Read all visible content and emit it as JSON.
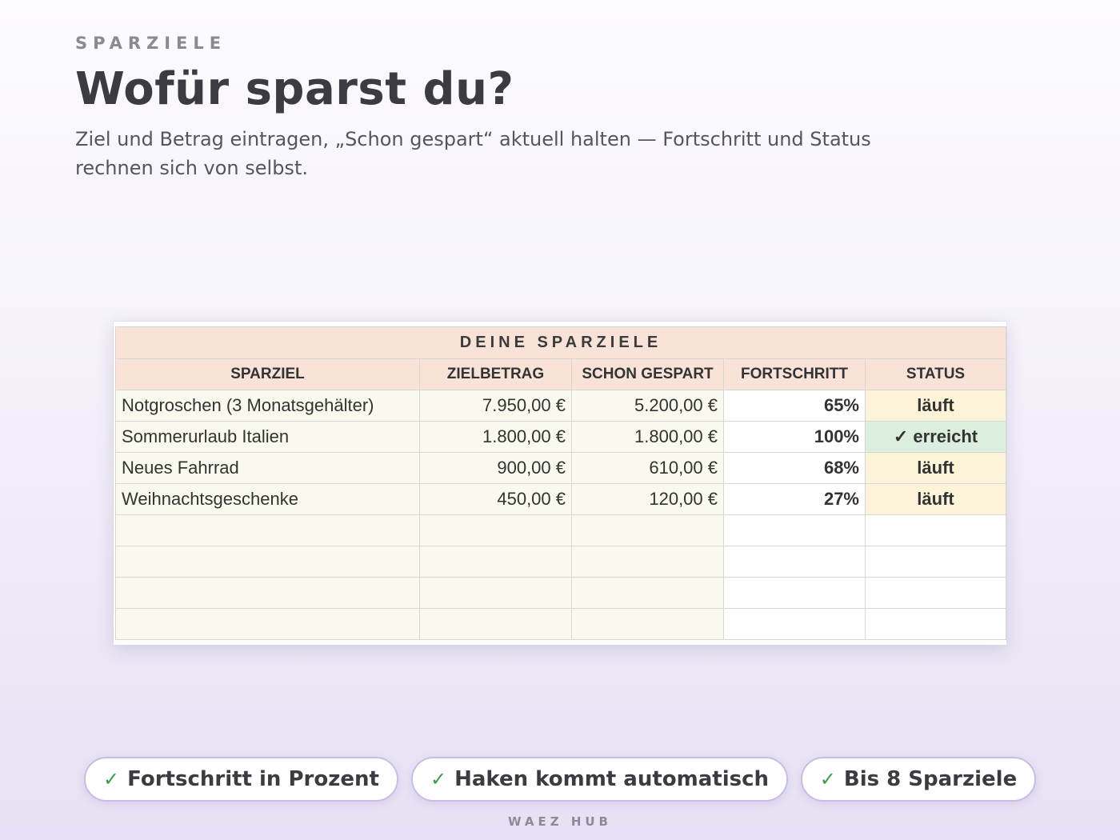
{
  "header": {
    "eyebrow": "SPARZIELE",
    "title": "Wofür sparst du?",
    "subtitle_line1": "Ziel und Betrag eintragen, „Schon gespart“ aktuell halten — Fortschritt und Status",
    "subtitle_line2": "rechnen sich von selbst."
  },
  "sheet": {
    "banner": "DEINE SPARZIELE",
    "columns": [
      "SPARZIEL",
      "ZIELBETRAG",
      "SCHON GESPART",
      "FORTSCHRITT",
      "STATUS"
    ],
    "rows": [
      {
        "goal": "Notgroschen (3 Monatsgehälter)",
        "target": "7.950,00 €",
        "saved": "5.200,00 €",
        "progress": "65%",
        "status": "läuft",
        "state": "open"
      },
      {
        "goal": "Sommerurlaub Italien",
        "target": "1.800,00 €",
        "saved": "1.800,00 €",
        "progress": "100%",
        "status": "✓ erreicht",
        "state": "done"
      },
      {
        "goal": "Neues Fahrrad",
        "target": "900,00 €",
        "saved": "610,00 €",
        "progress": "68%",
        "status": "läuft",
        "state": "open"
      },
      {
        "goal": "Weihnachtsgeschenke",
        "target": "450,00 €",
        "saved": "120,00 €",
        "progress": "27%",
        "status": "läuft",
        "state": "open"
      },
      {
        "goal": "",
        "target": "",
        "saved": "",
        "progress": "",
        "status": "",
        "state": "empty"
      },
      {
        "goal": "",
        "target": "",
        "saved": "",
        "progress": "",
        "status": "",
        "state": "empty"
      },
      {
        "goal": "",
        "target": "",
        "saved": "",
        "progress": "",
        "status": "",
        "state": "empty"
      },
      {
        "goal": "",
        "target": "",
        "saved": "",
        "progress": "",
        "status": "",
        "state": "empty"
      }
    ],
    "colors": {
      "header_fill": "#f9e3d9",
      "input_fill": "#f9f9ed",
      "status_open_fill": "#fdf3d9",
      "status_done_fill": "#dcefdf"
    }
  },
  "chips": [
    {
      "icon": "check-icon",
      "check": "✓",
      "label": "Fortschritt in Prozent"
    },
    {
      "icon": "check-icon",
      "check": "✓",
      "label": "Haken kommt automatisch"
    },
    {
      "icon": "check-icon",
      "check": "✓",
      "label": "Bis 8 Sparziele"
    }
  ],
  "footer": "WAEZ HUB"
}
